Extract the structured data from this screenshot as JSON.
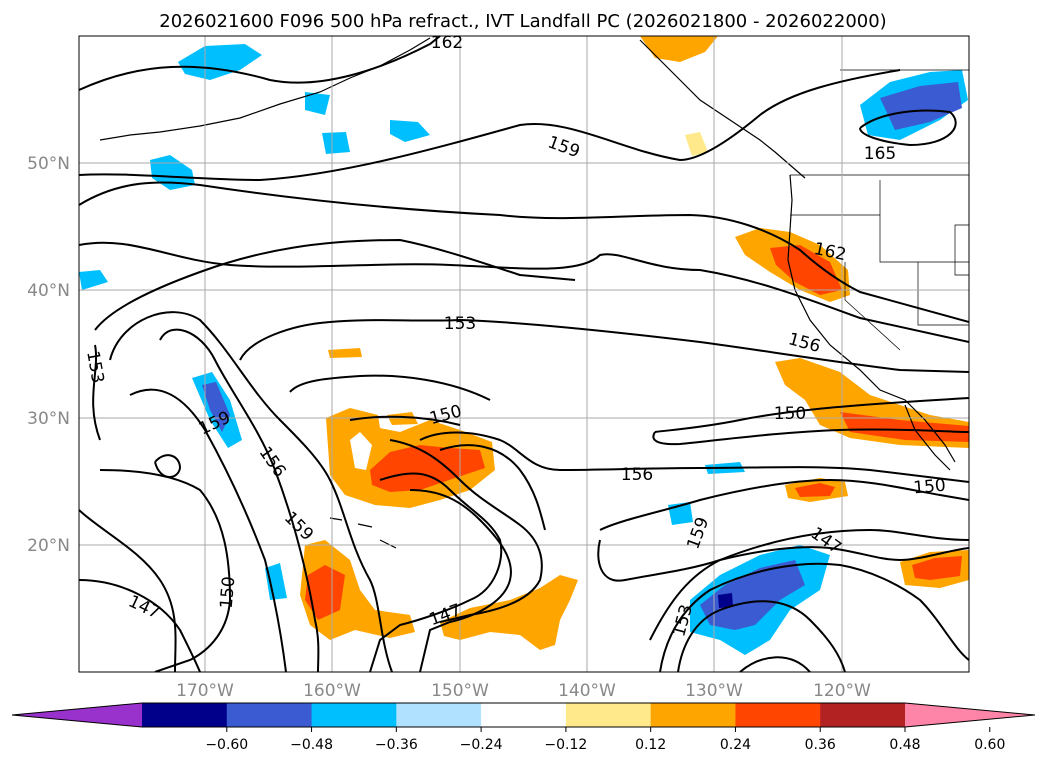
{
  "title": "2026021600 F096 500 hPa refract., IVT Landfall PC (2026021800 - 2026022000)",
  "lat_labels": [
    "50°N",
    "40°N",
    "30°N",
    "20°N"
  ],
  "lon_labels": [
    "170°W",
    "160°W",
    "150°W",
    "140°W",
    "130°W",
    "120°W"
  ],
  "contour_labels": [
    "162",
    "159",
    "165",
    "162",
    "153",
    "156",
    "153",
    "159",
    "150",
    "150",
    "156",
    "156",
    "150",
    "159",
    "159",
    "147",
    "150",
    "147",
    "147",
    "153"
  ],
  "colorbar": {
    "tick_labels": [
      "−0.60",
      "−0.48",
      "−0.36",
      "−0.24",
      "−0.12",
      "0.12",
      "0.24",
      "0.36",
      "0.48",
      "0.60"
    ],
    "colors": [
      "#9932cc",
      "#00008b",
      "#3a5bd1",
      "#00bfff",
      "#b0e2ff",
      "#ffffff",
      "#ffe98a",
      "#ffa500",
      "#ff4500",
      "#b22222",
      "#ff85a8"
    ]
  }
}
